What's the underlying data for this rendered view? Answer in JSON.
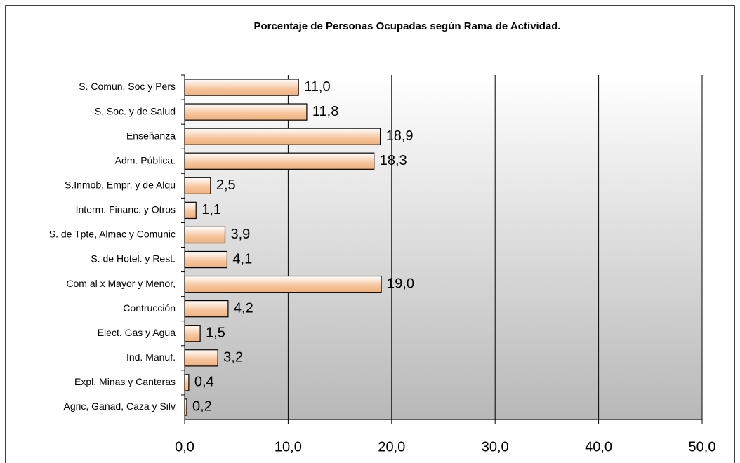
{
  "chart_data": {
    "type": "bar",
    "orientation": "horizontal",
    "title": "Porcentaje de Personas Ocupadas según Rama de Actividad.",
    "categories": [
      "S. Comun, Soc y Pers",
      "S. Soc. y de Salud",
      "Enseñanza",
      "Adm. Pública.",
      "S.Inmob, Empr. y de Alqu",
      "Interm. Financ. y Otros",
      "S. de Tpte, Almac y Comunic",
      "S. de Hotel. y Rest.",
      "Com al x Mayor y  Menor,",
      "Contrucción",
      "Elect. Gas y Agua",
      "Ind. Manuf.",
      "Expl. Minas y Canteras",
      "Agric, Ganad, Caza y Silv"
    ],
    "values": [
      11.0,
      11.8,
      18.9,
      18.3,
      2.5,
      1.1,
      3.9,
      4.1,
      19.0,
      4.2,
      1.5,
      3.2,
      0.4,
      0.2
    ],
    "value_labels": [
      "11,0",
      "11,8",
      "18,9",
      "18,3",
      "2,5",
      "1,1",
      "3,9",
      "4,1",
      "19,0",
      "4,2",
      "1,5",
      "3,2",
      "0,4",
      "0,2"
    ],
    "color": "#f6c49a",
    "xlim": [
      0,
      50
    ],
    "xticks": [
      {
        "value": 0,
        "label": "0,0"
      },
      {
        "value": 10,
        "label": "10,0"
      },
      {
        "value": 20,
        "label": "20,0"
      },
      {
        "value": 30,
        "label": "30,0"
      },
      {
        "value": 40,
        "label": "40,0"
      },
      {
        "value": 50,
        "label": "50,0"
      }
    ],
    "grid": true
  }
}
